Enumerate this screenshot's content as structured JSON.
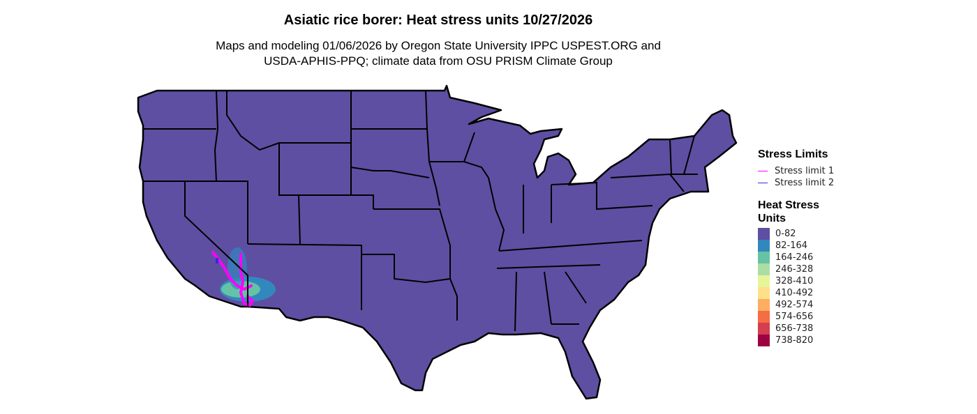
{
  "title": "Asiatic rice borer: Heat stress units 10/27/2026",
  "subtitle_line1": "Maps and modeling 01/06/2026 by Oregon State University IPPC USPEST.ORG and",
  "subtitle_line2": "USDA-APHIS-PPQ; climate data from OSU PRISM Climate Group",
  "legend": {
    "stress_title": "Stress Limits",
    "stress_items": [
      {
        "label": "Stress limit 1",
        "color": "#FF00FF"
      },
      {
        "label": "Stress limit 2",
        "color": "#3030D0"
      }
    ],
    "heat_title_line1": "Heat Stress",
    "heat_title_line2": "Units",
    "heat_items": [
      {
        "label": "0-82",
        "color": "#5E4FA2"
      },
      {
        "label": "82-164",
        "color": "#3288BD"
      },
      {
        "label": "164-246",
        "color": "#66C2A5"
      },
      {
        "label": "246-328",
        "color": "#ABDDA4"
      },
      {
        "label": "328-410",
        "color": "#E6F598"
      },
      {
        "label": "410-492",
        "color": "#FEE08B"
      },
      {
        "label": "492-574",
        "color": "#FDAE61"
      },
      {
        "label": "574-656",
        "color": "#F46D43"
      },
      {
        "label": "656-738",
        "color": "#D53E4F"
      },
      {
        "label": "738-820",
        "color": "#9E0142"
      }
    ]
  }
}
